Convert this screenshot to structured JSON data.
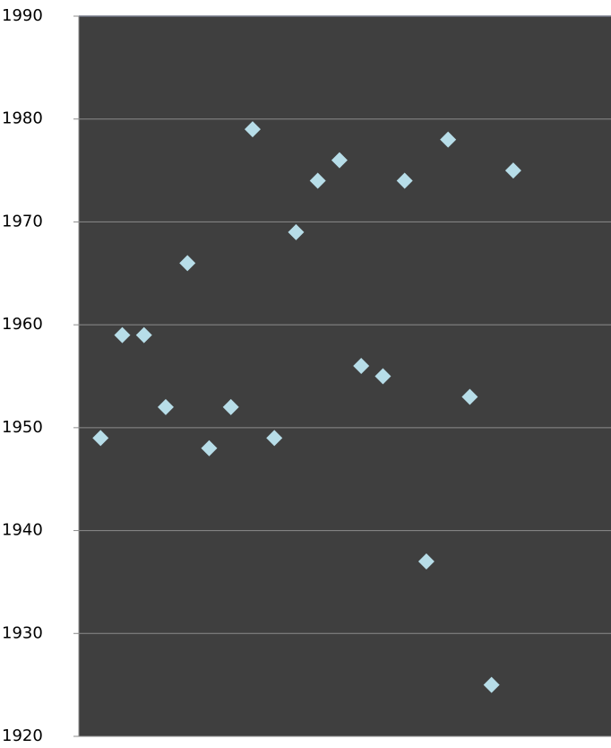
{
  "chart_data": {
    "type": "scatter",
    "x": [
      1,
      2,
      3,
      4,
      5,
      6,
      7,
      8,
      9,
      10,
      11,
      12,
      13,
      14,
      15,
      16,
      17,
      18,
      19,
      20
    ],
    "values": [
      1949,
      1959,
      1959,
      1952,
      1966,
      1948,
      1952,
      1979,
      1949,
      1969,
      1974,
      1976,
      1956,
      1955,
      1974,
      1937,
      1978,
      1953,
      1925,
      1975
    ],
    "color": "#b7dde8",
    "xlim": [
      0,
      24.5
    ],
    "ylim": [
      1920,
      1990
    ],
    "yticks": [
      1920,
      1930,
      1940,
      1950,
      1960,
      1970,
      1980,
      1990
    ],
    "grid": true
  }
}
